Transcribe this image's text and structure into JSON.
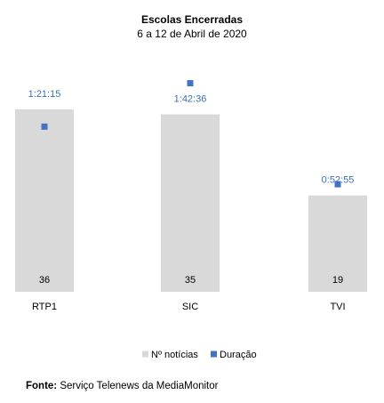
{
  "chart_data": {
    "type": "bar",
    "title": "Escolas Encerradas",
    "subtitle": "6 a 12 de Abril de 2020",
    "categories": [
      "RTP1",
      "SIC",
      "TVI"
    ],
    "series": [
      {
        "name": "Nº notícias",
        "values": [
          36,
          35,
          19
        ],
        "labels": [
          "36",
          "35",
          "19"
        ],
        "color": "#D9D9D9"
      },
      {
        "name": "Duração",
        "values": [
          "1:21:15",
          "1:42:36",
          "0:52:55"
        ],
        "seconds": [
          4875,
          6156,
          3175
        ],
        "color": "#4472C4",
        "label_color": "#3A6FB5"
      }
    ],
    "bar_ylim": [
      0,
      36.5
    ],
    "duration_ylim": [
      0,
      7300
    ],
    "legend_position": "bottom",
    "grid": false
  },
  "source": {
    "label": "Fonte:",
    "text": "Serviço Telenews da MediaMonitor"
  }
}
